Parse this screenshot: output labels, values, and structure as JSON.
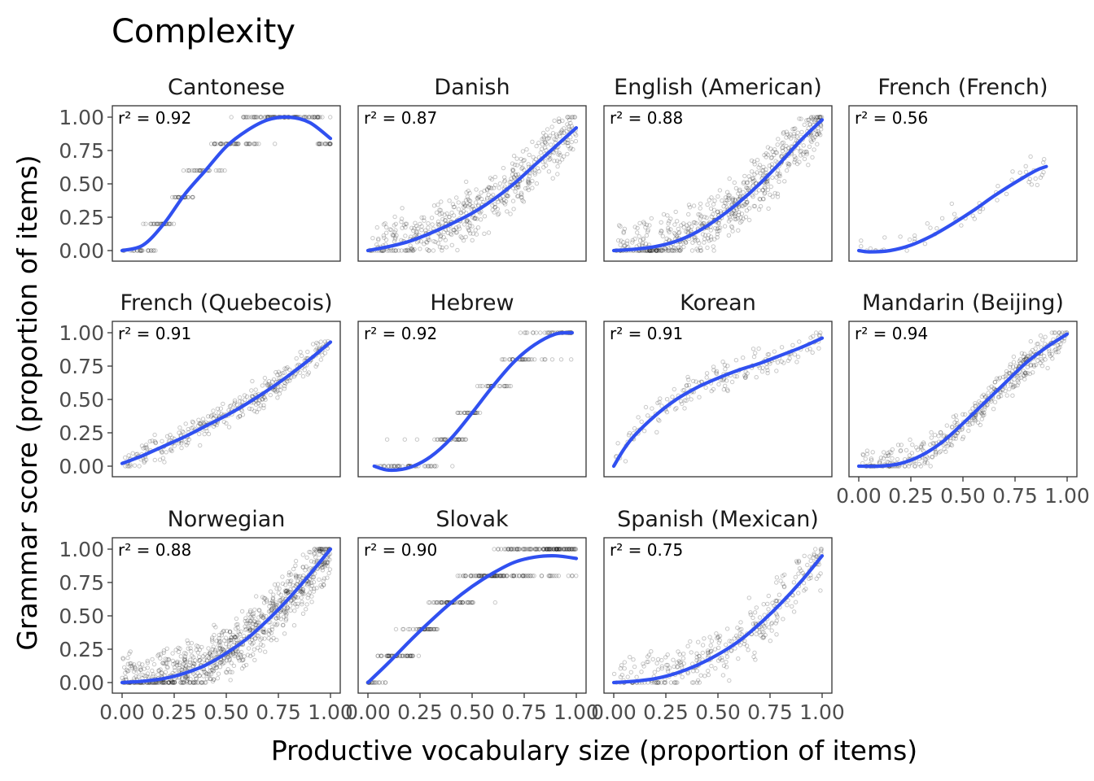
{
  "chart_data": {
    "type": "scatter",
    "title": "Complexity",
    "xlabel": "Productive vocabulary size (proportion of items)",
    "ylabel": "Grammar score (proportion of items)",
    "xlim": [
      0,
      1
    ],
    "ylim": [
      0,
      1
    ],
    "x_ticks": [
      "0.00",
      "0.25",
      "0.50",
      "0.75",
      "1.00"
    ],
    "y_ticks": [
      "0.00",
      "0.25",
      "0.50",
      "0.75",
      "1.00"
    ],
    "grid": false,
    "point_color": "#000000",
    "line_color": "#3050f0",
    "panels": [
      {
        "name": "Cantonese",
        "r2_label": "r² = 0.92",
        "fit": [
          [
            0.0,
            0.0
          ],
          [
            0.1,
            0.04
          ],
          [
            0.2,
            0.2
          ],
          [
            0.3,
            0.42
          ],
          [
            0.4,
            0.6
          ],
          [
            0.5,
            0.78
          ],
          [
            0.6,
            0.9
          ],
          [
            0.7,
            0.98
          ],
          [
            0.8,
            1.0
          ],
          [
            0.9,
            0.96
          ],
          [
            1.0,
            0.84
          ]
        ]
      },
      {
        "name": "Danish",
        "r2_label": "r² = 0.87",
        "fit": [
          [
            0.0,
            0.0
          ],
          [
            0.1,
            0.03
          ],
          [
            0.2,
            0.07
          ],
          [
            0.3,
            0.13
          ],
          [
            0.4,
            0.2
          ],
          [
            0.5,
            0.28
          ],
          [
            0.6,
            0.38
          ],
          [
            0.7,
            0.5
          ],
          [
            0.8,
            0.64
          ],
          [
            0.9,
            0.78
          ],
          [
            1.0,
            0.92
          ]
        ]
      },
      {
        "name": "English (American)",
        "r2_label": "r² = 0.88",
        "fit": [
          [
            0.0,
            0.0
          ],
          [
            0.1,
            0.01
          ],
          [
            0.2,
            0.03
          ],
          [
            0.3,
            0.07
          ],
          [
            0.4,
            0.14
          ],
          [
            0.5,
            0.24
          ],
          [
            0.6,
            0.36
          ],
          [
            0.7,
            0.5
          ],
          [
            0.8,
            0.66
          ],
          [
            0.9,
            0.83
          ],
          [
            1.0,
            0.98
          ]
        ]
      },
      {
        "name": "French (French)",
        "r2_label": "r² = 0.56",
        "fit": [
          [
            0.0,
            0.0
          ],
          [
            0.05,
            -0.01
          ],
          [
            0.15,
            0.0
          ],
          [
            0.25,
            0.04
          ],
          [
            0.35,
            0.11
          ],
          [
            0.45,
            0.2
          ],
          [
            0.55,
            0.3
          ],
          [
            0.65,
            0.41
          ],
          [
            0.75,
            0.51
          ],
          [
            0.85,
            0.6
          ],
          [
            0.9,
            0.63
          ]
        ]
      },
      {
        "name": "French (Quebecois)",
        "r2_label": "r² = 0.91",
        "fit": [
          [
            0.0,
            0.02
          ],
          [
            0.1,
            0.08
          ],
          [
            0.2,
            0.15
          ],
          [
            0.3,
            0.22
          ],
          [
            0.4,
            0.3
          ],
          [
            0.5,
            0.38
          ],
          [
            0.6,
            0.47
          ],
          [
            0.7,
            0.57
          ],
          [
            0.8,
            0.68
          ],
          [
            0.9,
            0.8
          ],
          [
            1.0,
            0.93
          ]
        ]
      },
      {
        "name": "Hebrew",
        "r2_label": "r² = 0.92",
        "fit": [
          [
            0.03,
            0.0
          ],
          [
            0.1,
            -0.03
          ],
          [
            0.2,
            -0.01
          ],
          [
            0.3,
            0.07
          ],
          [
            0.4,
            0.21
          ],
          [
            0.5,
            0.4
          ],
          [
            0.6,
            0.6
          ],
          [
            0.7,
            0.78
          ],
          [
            0.8,
            0.91
          ],
          [
            0.9,
            0.99
          ],
          [
            0.98,
            1.0
          ]
        ]
      },
      {
        "name": "Korean",
        "r2_label": "r² = 0.91",
        "fit": [
          [
            0.0,
            0.0
          ],
          [
            0.05,
            0.13
          ],
          [
            0.1,
            0.23
          ],
          [
            0.2,
            0.38
          ],
          [
            0.3,
            0.5
          ],
          [
            0.4,
            0.59
          ],
          [
            0.5,
            0.66
          ],
          [
            0.6,
            0.72
          ],
          [
            0.7,
            0.77
          ],
          [
            0.8,
            0.83
          ],
          [
            0.9,
            0.89
          ],
          [
            1.0,
            0.96
          ]
        ]
      },
      {
        "name": "Mandarin (Beijing)",
        "r2_label": "r² = 0.94",
        "fit": [
          [
            0.0,
            0.0
          ],
          [
            0.1,
            0.0
          ],
          [
            0.2,
            0.02
          ],
          [
            0.3,
            0.08
          ],
          [
            0.4,
            0.18
          ],
          [
            0.5,
            0.32
          ],
          [
            0.6,
            0.47
          ],
          [
            0.7,
            0.62
          ],
          [
            0.8,
            0.77
          ],
          [
            0.9,
            0.89
          ],
          [
            1.0,
            0.99
          ]
        ]
      },
      {
        "name": "Norwegian",
        "r2_label": "r² = 0.88",
        "fit": [
          [
            0.0,
            0.0
          ],
          [
            0.1,
            0.01
          ],
          [
            0.2,
            0.03
          ],
          [
            0.3,
            0.07
          ],
          [
            0.4,
            0.13
          ],
          [
            0.5,
            0.22
          ],
          [
            0.6,
            0.33
          ],
          [
            0.7,
            0.47
          ],
          [
            0.8,
            0.63
          ],
          [
            0.9,
            0.81
          ],
          [
            1.0,
            1.0
          ]
        ]
      },
      {
        "name": "Slovak",
        "r2_label": "r² = 0.90",
        "fit": [
          [
            0.0,
            0.0
          ],
          [
            0.1,
            0.15
          ],
          [
            0.2,
            0.31
          ],
          [
            0.3,
            0.46
          ],
          [
            0.4,
            0.6
          ],
          [
            0.5,
            0.72
          ],
          [
            0.6,
            0.82
          ],
          [
            0.7,
            0.9
          ],
          [
            0.8,
            0.94
          ],
          [
            0.9,
            0.95
          ],
          [
            1.0,
            0.93
          ]
        ]
      },
      {
        "name": "Spanish (Mexican)",
        "r2_label": "r² = 0.75",
        "fit": [
          [
            0.0,
            0.0
          ],
          [
            0.1,
            0.01
          ],
          [
            0.2,
            0.03
          ],
          [
            0.3,
            0.07
          ],
          [
            0.4,
            0.13
          ],
          [
            0.5,
            0.21
          ],
          [
            0.6,
            0.31
          ],
          [
            0.7,
            0.44
          ],
          [
            0.8,
            0.59
          ],
          [
            0.9,
            0.76
          ],
          [
            1.0,
            0.95
          ]
        ]
      }
    ]
  }
}
